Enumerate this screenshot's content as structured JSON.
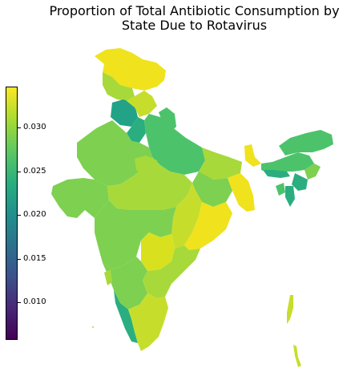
{
  "title_line1": "Proportion of Total Antibiotic Consumption by",
  "title_line2": "State Due to Rotavirus",
  "colorbar": {
    "ticks": [
      "0.010",
      "0.015",
      "0.020",
      "0.025",
      "0.030"
    ]
  },
  "colors": {
    "yellow": "#f0e21c",
    "yellowgreen": "#c6de2b",
    "lightgreen": "#a8d93a",
    "green": "#7ed050",
    "midgreen": "#4cc36b",
    "teal": "#2aae80",
    "darkteal": "#22a287"
  }
}
